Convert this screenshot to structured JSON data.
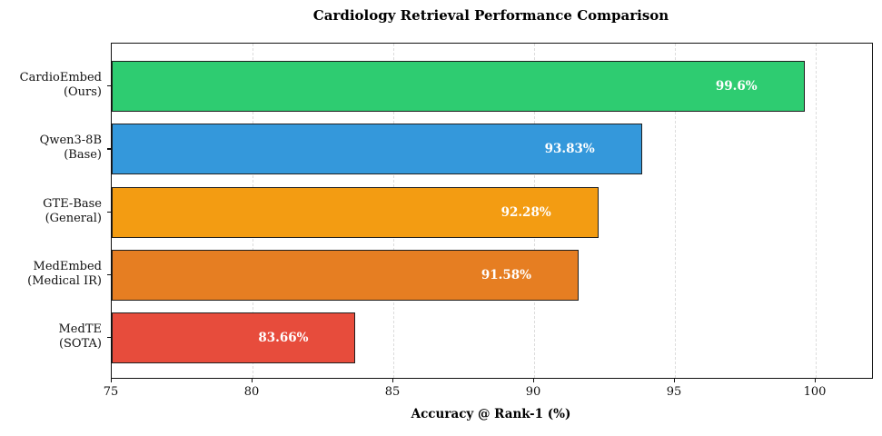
{
  "chart_data": {
    "type": "bar",
    "orientation": "horizontal",
    "title": "Cardiology Retrieval Performance Comparison",
    "xlabel": "Accuracy @ Rank-1 (%)",
    "ylabel": "",
    "x_min": 75,
    "x_max": 102,
    "x_ticks": [
      75,
      80,
      85,
      90,
      95,
      100
    ],
    "x_tick_labels": [
      "75",
      "80",
      "85",
      "90",
      "95",
      "100"
    ],
    "grid_values": [
      80,
      85,
      90,
      95,
      100
    ],
    "grid_on": true,
    "legend": "none",
    "bars": [
      {
        "label_line1": "CardioEmbed",
        "label_line2": "(Ours)",
        "value": 99.6,
        "value_label": "99.6%",
        "color": "#2ecc71"
      },
      {
        "label_line1": "Qwen3-8B",
        "label_line2": "(Base)",
        "value": 93.83,
        "value_label": "93.83%",
        "color": "#3498db"
      },
      {
        "label_line1": "GTE-Base",
        "label_line2": "(General)",
        "value": 92.28,
        "value_label": "92.28%",
        "color": "#f39c12"
      },
      {
        "label_line1": "MedEmbed",
        "label_line2": "(Medical IR)",
        "value": 91.58,
        "value_label": "91.58%",
        "color": "#e67e22"
      },
      {
        "label_line1": "MedTE",
        "label_line2": "(SOTA)",
        "value": 83.66,
        "value_label": "83.66%",
        "color": "#e74c3c"
      }
    ],
    "colors": {
      "bar_edge": "#1f1f1f",
      "grid": "#dcdcdc",
      "spine": "#111111",
      "text": "#000000",
      "value_text": "#ffffff",
      "background": "#ffffff"
    }
  }
}
